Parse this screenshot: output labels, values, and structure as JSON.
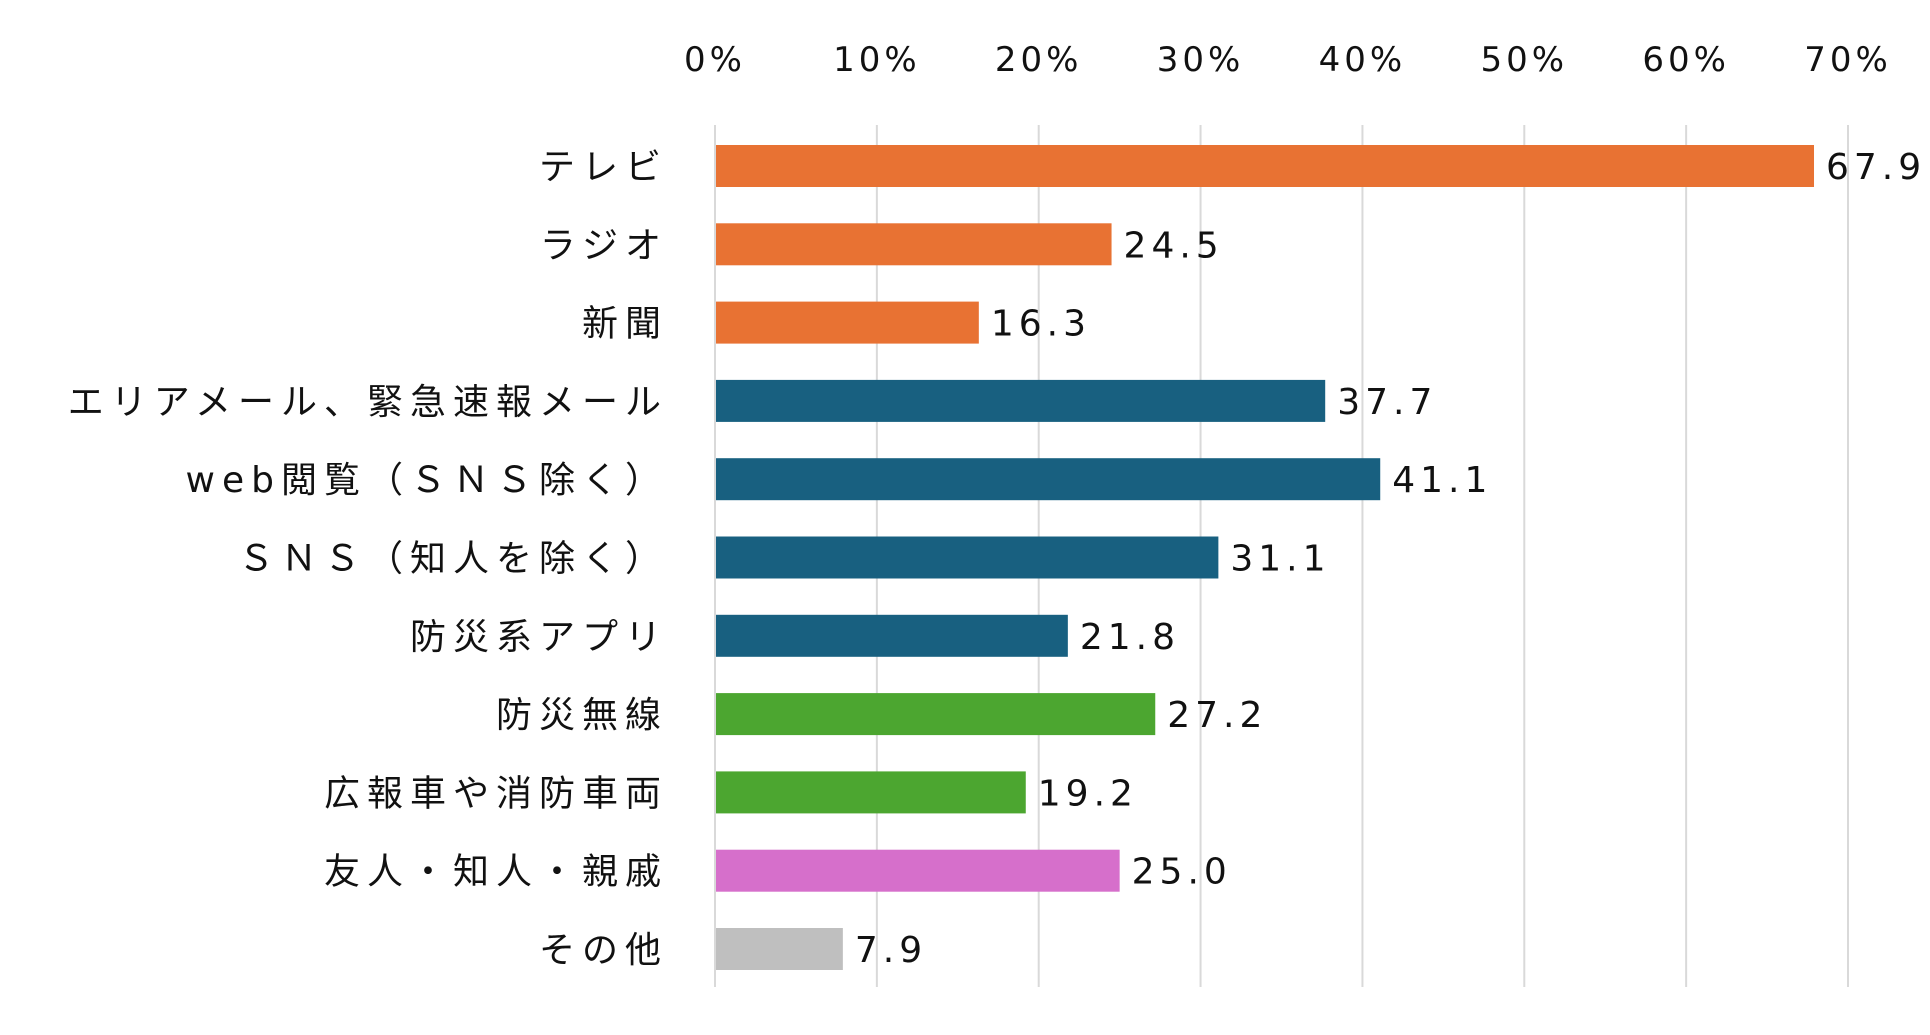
{
  "chart_data": {
    "type": "bar",
    "orientation": "horizontal",
    "title": "",
    "xlabel": "",
    "ylabel": "",
    "xlim": [
      0,
      70
    ],
    "x_ticks": [
      "0%",
      "10%",
      "20%",
      "30%",
      "40%",
      "50%",
      "60%",
      "70%"
    ],
    "grid": true,
    "axis_position": "top",
    "categories": [
      "テレビ",
      "ラジオ",
      "新聞",
      "エリアメール、緊急速報メール",
      "web閲覧（ＳＮＳ除く）",
      "ＳＮＳ（知人を除く）",
      "防災系アプリ",
      "防災無線",
      "広報車や消防車両",
      "友人・知人・親戚",
      "その他"
    ],
    "values": [
      67.9,
      24.5,
      16.3,
      37.7,
      41.1,
      31.1,
      21.8,
      27.2,
      19.2,
      25.0,
      7.9
    ],
    "value_labels": [
      "67.9",
      "24.5",
      "16.3",
      "37.7",
      "41.1",
      "31.1",
      "21.8",
      "27.2",
      "19.2",
      "25.0",
      "7.9"
    ],
    "colors": [
      "#E87233",
      "#E87233",
      "#E87233",
      "#186080",
      "#186080",
      "#186080",
      "#186080",
      "#4CA630",
      "#4CA630",
      "#D66FCB",
      "#BFBFBF"
    ],
    "grid_color": "#D9D9D9"
  }
}
